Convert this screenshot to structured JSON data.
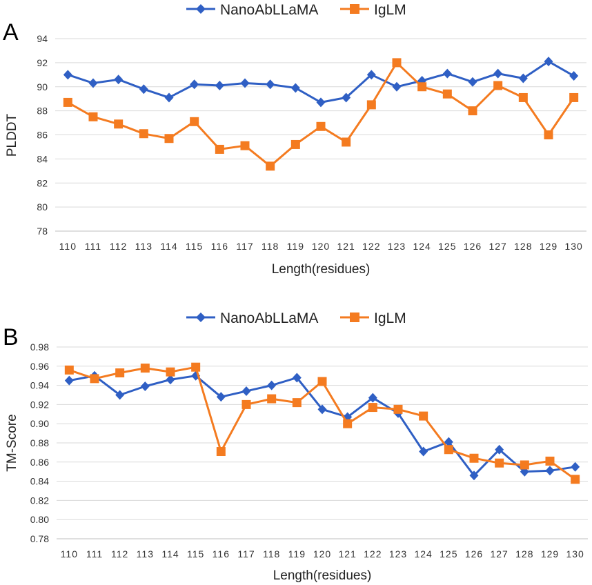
{
  "colors": {
    "nano": "#2F5FC4",
    "iglm": "#F47B20"
  },
  "chart_data": [
    {
      "panel": "A",
      "type": "line",
      "legend": [
        "NanoAbLLaMA",
        "IgLM"
      ],
      "x": [
        "110",
        "111",
        "112",
        "113",
        "114",
        "115",
        "116",
        "117",
        "118",
        "119",
        "120",
        "121",
        "122",
        "123",
        "124",
        "125",
        "126",
        "127",
        "128",
        "129",
        "130"
      ],
      "xlabel": "Length(residues)",
      "ylabel": "PLDDT",
      "ylim": [
        78,
        94
      ],
      "yticks": [
        "78",
        "80",
        "82",
        "84",
        "86",
        "88",
        "90",
        "92",
        "94"
      ],
      "series": [
        {
          "name": "NanoAbLLaMA",
          "marker": "diamond",
          "values": [
            91.0,
            90.3,
            90.6,
            89.8,
            89.1,
            90.2,
            90.1,
            90.3,
            90.2,
            89.9,
            88.7,
            89.1,
            91.0,
            90.0,
            90.5,
            91.1,
            90.4,
            91.1,
            90.7,
            92.1,
            90.9
          ]
        },
        {
          "name": "IgLM",
          "marker": "square",
          "values": [
            88.7,
            87.5,
            86.9,
            86.1,
            85.7,
            87.1,
            84.8,
            85.1,
            83.4,
            85.2,
            86.7,
            85.4,
            88.5,
            92.0,
            90.0,
            89.4,
            88.0,
            90.1,
            89.1,
            86.0,
            89.1
          ]
        }
      ]
    },
    {
      "panel": "B",
      "type": "line",
      "legend": [
        "NanoAbLLaMA",
        "IgLM"
      ],
      "x": [
        "110",
        "111",
        "112",
        "113",
        "114",
        "115",
        "116",
        "117",
        "118",
        "119",
        "120",
        "121",
        "122",
        "123",
        "124",
        "125",
        "126",
        "127",
        "128",
        "129",
        "130"
      ],
      "xlabel": "Length(residues)",
      "ylabel": "TM-Score",
      "ylim": [
        0.78,
        0.98
      ],
      "yticks": [
        "0.78",
        "0.80",
        "0.82",
        "0.84",
        "0.86",
        "0.88",
        "0.90",
        "0.92",
        "0.94",
        "0.96",
        "0.98"
      ],
      "series": [
        {
          "name": "NanoAbLLaMA",
          "marker": "diamond",
          "values": [
            0.945,
            0.95,
            0.93,
            0.939,
            0.946,
            0.95,
            0.928,
            0.934,
            0.94,
            0.948,
            0.915,
            0.907,
            0.927,
            0.911,
            0.871,
            0.881,
            0.846,
            0.873,
            0.85,
            0.851,
            0.855
          ]
        },
        {
          "name": "IgLM",
          "marker": "square",
          "values": [
            0.956,
            0.947,
            0.953,
            0.958,
            0.954,
            0.959,
            0.871,
            0.92,
            0.926,
            0.922,
            0.944,
            0.9,
            0.917,
            0.915,
            0.908,
            0.873,
            0.864,
            0.859,
            0.857,
            0.861,
            0.842
          ]
        }
      ]
    }
  ]
}
